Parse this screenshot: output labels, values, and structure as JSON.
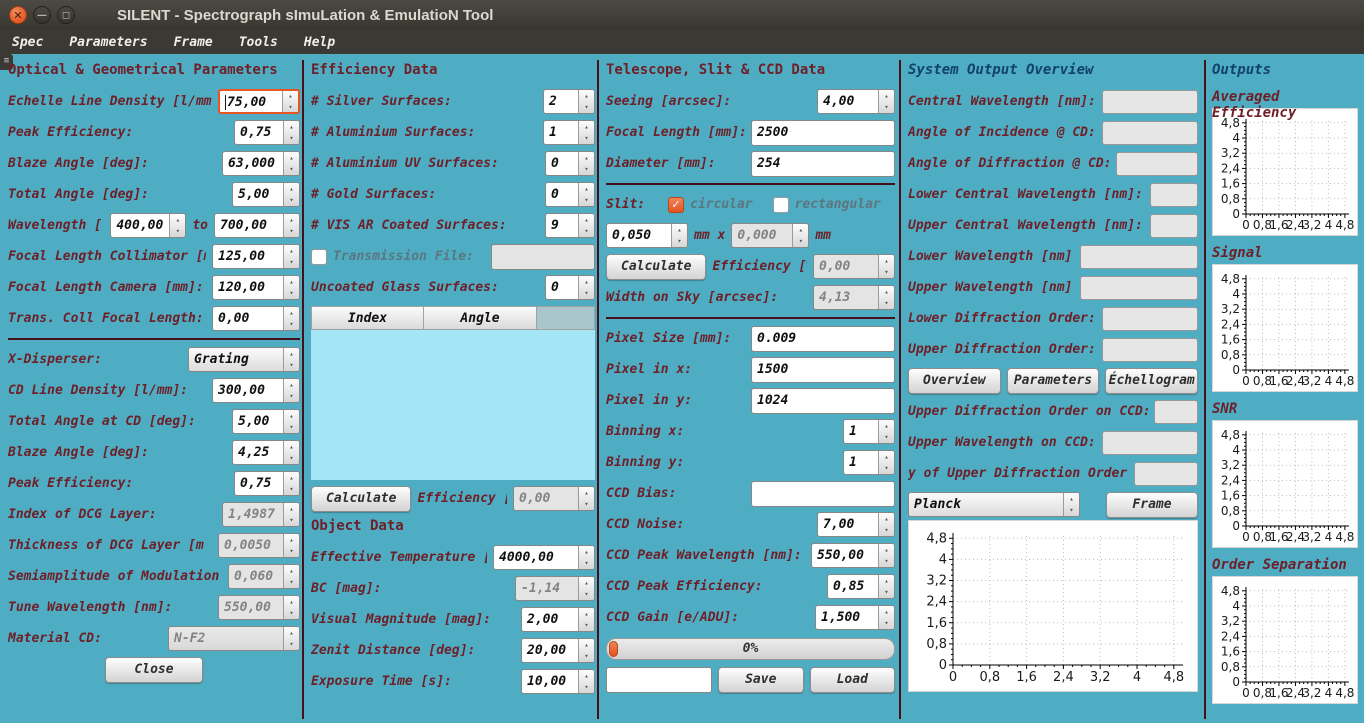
{
  "window": {
    "title": "SILENT - Spectrograph sImuLation & EmulatioN Tool",
    "buttons": [
      {
        "name": "close",
        "glyph": "✕"
      },
      {
        "name": "minimize",
        "glyph": "—"
      },
      {
        "name": "maximize",
        "glyph": "◻"
      }
    ]
  },
  "menu": [
    "Spec",
    "Parameters",
    "Frame",
    "Tools",
    "Help"
  ],
  "icons": {
    "spin_up": "▴",
    "spin_down": "▾",
    "check": "✓",
    "grip": "≡"
  },
  "colors": {
    "background": "#4fadc3",
    "label_maroon": "#6e1f28",
    "header_blue": "#12426a",
    "accent_orange": "#e95420",
    "table_body": "#a5e6f6",
    "titlebar": "#3a3934"
  },
  "columns": [
    {
      "title": "Optical & Geometrical Parameters",
      "rows": [
        {
          "t": "spin",
          "label": "Echelle Line Density [l/mm",
          "value": "75,00",
          "w": 82,
          "state": "focused"
        },
        {
          "t": "spin",
          "label": "Peak Efficiency:",
          "value": "0,75",
          "w": 66
        },
        {
          "t": "spin",
          "label": "Blaze Angle [deg]:",
          "value": "63,000",
          "w": 78
        },
        {
          "t": "spin",
          "label": "Total Angle [deg]:",
          "value": "5,00",
          "w": 68
        },
        {
          "t": "wave",
          "label": "Wavelength [",
          "v1": "400,00",
          "mid": "to",
          "v2": "700,00",
          "w1": 76,
          "w2": 86
        },
        {
          "t": "spin",
          "label": "Focal Length Collimator [m",
          "value": "125,00",
          "w": 88
        },
        {
          "t": "spin",
          "label": "Focal Length Camera [mm]:",
          "value": "120,00",
          "w": 88
        },
        {
          "t": "spin",
          "label": "Trans. Coll Focal Length:",
          "value": "0,00",
          "w": 88
        },
        {
          "t": "divider"
        },
        {
          "t": "combo",
          "label": "X-Disperser:",
          "value": "Grating",
          "w": 112
        },
        {
          "t": "spin",
          "label": "CD Line Density [l/mm]:",
          "value": "300,00",
          "w": 88
        },
        {
          "t": "spin",
          "label": "Total Angle at CD [deg]:",
          "value": "5,00",
          "w": 68
        },
        {
          "t": "spin",
          "label": "Blaze Angle [deg]:",
          "value": "4,25",
          "w": 68
        },
        {
          "t": "spin",
          "label": "Peak Efficiency:",
          "value": "0,75",
          "w": 66
        },
        {
          "t": "spin",
          "label": "Index of DCG Layer:",
          "value": "1,4987",
          "w": 78,
          "state": "disabled"
        },
        {
          "t": "spin",
          "label": "Thickness of DCG Layer [m",
          "value": "0,0050",
          "w": 82,
          "state": "disabled"
        },
        {
          "t": "spin",
          "label": "Semiamplitude of Modulation",
          "value": "0,060",
          "w": 72,
          "state": "disabled"
        },
        {
          "t": "spin",
          "label": "Tune Wavelength [nm]:",
          "value": "550,00",
          "w": 82,
          "state": "disabled"
        },
        {
          "t": "combo",
          "label": "Material CD:",
          "value": "N-F2",
          "w": 132,
          "state": "disabled"
        },
        {
          "t": "btn",
          "label": "Close"
        }
      ]
    },
    {
      "title": "Efficiency Data",
      "rows": [
        {
          "t": "spin",
          "label": "# Silver Surfaces:",
          "value": "2",
          "w": 52
        },
        {
          "t": "spin",
          "label": "# Aluminium Surfaces:",
          "value": "1",
          "w": 52
        },
        {
          "t": "spin",
          "label": "# Aluminium UV Surfaces:",
          "value": "0",
          "w": 50
        },
        {
          "t": "spin",
          "label": "# Gold Surfaces:",
          "value": "0",
          "w": 50
        },
        {
          "t": "spin",
          "label": "# VIS AR Coated Surfaces:",
          "value": "9",
          "w": 50
        },
        {
          "t": "checkfile",
          "label": "Transmission File:",
          "checked": false,
          "value": "",
          "w": 104
        },
        {
          "t": "spin",
          "label": "Uncoated Glass Surfaces:",
          "value": "0",
          "w": 50
        },
        {
          "t": "table",
          "headers": [
            "Index",
            "Angle"
          ],
          "rows": [],
          "h": 150
        },
        {
          "t": "calc",
          "button": "Calculate",
          "label": "Efficiency [%]",
          "value": "0,00",
          "w": 82
        },
        {
          "t": "header",
          "text": "Object Data"
        },
        {
          "t": "spin",
          "label": "Effective Temperature [K",
          "value": "4000,00",
          "w": 102
        },
        {
          "t": "spin",
          "label": "BC [mag]:",
          "value": "-1,14",
          "w": 80,
          "state": "disabled"
        },
        {
          "t": "spin",
          "label": "Visual Magnitude [mag]:",
          "value": "2,00",
          "w": 74
        },
        {
          "t": "spin",
          "label": "Zenit Distance [deg]:",
          "value": "20,00",
          "w": 74
        },
        {
          "t": "spin",
          "label": "Exposure Time [s]:",
          "value": "10,00",
          "w": 74
        }
      ]
    },
    {
      "title": "Telescope, Slit & CCD Data",
      "rows": [
        {
          "t": "spin",
          "label": "Seeing [arcsec]:",
          "value": "4,00",
          "w": 78
        },
        {
          "t": "text",
          "label": "Focal Length [mm]:",
          "value": "2500",
          "w": 144
        },
        {
          "t": "text",
          "label": "Diameter [mm]:",
          "value": "254",
          "w": 144
        },
        {
          "t": "divider"
        },
        {
          "t": "slit",
          "label": "Slit:",
          "checks": [
            {
              "label": "circular",
              "checked": true
            },
            {
              "label": "rectangular",
              "checked": false
            }
          ]
        },
        {
          "t": "slitdims",
          "v1": "0,050",
          "w1": 82,
          "sep1": "mm x",
          "v2": "0,000",
          "w2": 78,
          "sep2": "mm"
        },
        {
          "t": "calc",
          "button": "Calculate",
          "label": "Efficiency [%]",
          "value": "0,00",
          "w": 82
        },
        {
          "t": "spin",
          "label": "Width on Sky [arcsec]:",
          "value": "4,13",
          "w": 82,
          "state": "disabled"
        },
        {
          "t": "divider"
        },
        {
          "t": "text",
          "label": "Pixel Size [mm]:",
          "value": "0.009",
          "w": 144
        },
        {
          "t": "text",
          "label": "Pixel in x:",
          "value": "1500",
          "w": 144
        },
        {
          "t": "text",
          "label": "Pixel in y:",
          "value": "1024",
          "w": 144
        },
        {
          "t": "spin",
          "label": "Binning x:",
          "value": "1",
          "w": 52
        },
        {
          "t": "spin",
          "label": "Binning y:",
          "value": "1",
          "w": 52
        },
        {
          "t": "text",
          "label": "CCD Bias:",
          "value": "",
          "w": 144
        },
        {
          "t": "spin",
          "label": "CCD Noise:",
          "value": "7,00",
          "w": 78
        },
        {
          "t": "spin",
          "label": "CCD Peak Wavelength [nm]:",
          "value": "550,00",
          "w": 84
        },
        {
          "t": "spin",
          "label": "CCD Peak Efficiency:",
          "value": "0,85",
          "w": 68
        },
        {
          "t": "spin",
          "label": "CCD  Gain [e/ADU]:",
          "value": "1,500",
          "w": 80
        },
        {
          "t": "progress",
          "label": "0%",
          "percent": 0
        },
        {
          "t": "filerow",
          "input": "",
          "buttons": [
            "Save",
            "Load"
          ]
        }
      ]
    },
    {
      "title": "System Output Overview",
      "accent": "blue",
      "rows": [
        {
          "t": "out",
          "label": "Central Wavelength [nm]:",
          "w": 96
        },
        {
          "t": "out",
          "label": "Angle of Incidence @ CD:",
          "w": 96
        },
        {
          "t": "out",
          "label": "Angle of Diffraction @ CD:",
          "w": 82
        },
        {
          "t": "out",
          "label": "Lower Central Wavelength [nm]:",
          "w": 48
        },
        {
          "t": "out",
          "label": "Upper Central Wavelength [nm]:",
          "w": 48
        },
        {
          "t": "out",
          "label": "Lower Wavelength [nm]:",
          "w": 118
        },
        {
          "t": "out",
          "label": "Upper Wavelength [nm]:",
          "w": 118
        },
        {
          "t": "out",
          "label": "Lower Diffraction Order:",
          "w": 96
        },
        {
          "t": "out",
          "label": "Upper Diffraction Order:",
          "w": 96
        },
        {
          "t": "btnrow",
          "buttons": [
            "Overview",
            "Parameters",
            "Échellogram"
          ]
        },
        {
          "t": "out",
          "label": "Upper Diffraction Order on CCD:",
          "w": 44
        },
        {
          "t": "out",
          "label": "Upper Wavelength on CCD:",
          "w": 96
        },
        {
          "t": "out",
          "label": "y of Upper Diffraction Order:",
          "w": 64
        },
        {
          "t": "combobtn",
          "combo": "Planck",
          "button": "Frame"
        },
        {
          "t": "chart",
          "idx": 0,
          "h": 172
        }
      ]
    },
    {
      "title": "Outputs",
      "accent": "blue",
      "rows": [
        {
          "t": "charttitle",
          "text": "Averaged Efficiency"
        },
        {
          "t": "chart",
          "idx": 1,
          "h": 128
        },
        {
          "t": "charttitle",
          "text": "Signal"
        },
        {
          "t": "chart",
          "idx": 2,
          "h": 128
        },
        {
          "t": "charttitle",
          "text": "SNR"
        },
        {
          "t": "chart",
          "idx": 3,
          "h": 128
        },
        {
          "t": "charttitle",
          "text": "Order Separation"
        },
        {
          "t": "chart",
          "idx": 4,
          "h": 128
        }
      ]
    }
  ],
  "chart_data": [
    {
      "type": "line",
      "title": "",
      "series": [],
      "xlim": [
        0,
        4.8
      ],
      "ylim": [
        0,
        4.8
      ],
      "grid": true,
      "xticks": [
        0,
        0.8,
        1.6,
        2.4,
        3.2,
        4,
        4.8
      ],
      "yticks": [
        0,
        0.8,
        1.6,
        2.4,
        3.2,
        4,
        4.8
      ],
      "xtick_labels": [
        "0",
        "0,8",
        "1,6",
        "2,4",
        "3,2",
        "4",
        "4,8"
      ],
      "ytick_labels": [
        "0",
        "0,8",
        "1,6",
        "2,4",
        "3,2",
        "4",
        "4,8"
      ]
    },
    {
      "type": "line",
      "title": "Averaged Efficiency",
      "series": [],
      "xlim": [
        0,
        4.8
      ],
      "ylim": [
        0,
        4.8
      ],
      "grid": true,
      "xticks": [
        0,
        0.8,
        1.6,
        2.4,
        3.2,
        4,
        4.8
      ],
      "yticks": [
        0,
        0.8,
        1.6,
        2.4,
        3.2,
        4,
        4.8
      ],
      "xtick_labels": [
        "0",
        "0,8",
        "1,6",
        "2,4",
        "3,2",
        "4",
        "4,8"
      ],
      "ytick_labels": [
        "0",
        "0,8",
        "1,6",
        "2,4",
        "3,2",
        "4",
        "4,8"
      ]
    },
    {
      "type": "line",
      "title": "Signal",
      "series": [],
      "xlim": [
        0,
        4.8
      ],
      "ylim": [
        0,
        4.8
      ],
      "grid": true,
      "xticks": [
        0,
        0.8,
        1.6,
        2.4,
        3.2,
        4,
        4.8
      ],
      "yticks": [
        0,
        0.8,
        1.6,
        2.4,
        3.2,
        4,
        4.8
      ],
      "xtick_labels": [
        "0",
        "0,8",
        "1,6",
        "2,4",
        "3,2",
        "4",
        "4,8"
      ],
      "ytick_labels": [
        "0",
        "0,8",
        "1,6",
        "2,4",
        "3,2",
        "4",
        "4,8"
      ]
    },
    {
      "type": "line",
      "title": "SNR",
      "series": [],
      "xlim": [
        0,
        4.8
      ],
      "ylim": [
        0,
        4.8
      ],
      "grid": true,
      "xticks": [
        0,
        0.8,
        1.6,
        2.4,
        3.2,
        4,
        4.8
      ],
      "yticks": [
        0,
        0.8,
        1.6,
        2.4,
        3.2,
        4,
        4.8
      ],
      "xtick_labels": [
        "0",
        "0,8",
        "1,6",
        "2,4",
        "3,2",
        "4",
        "4,8"
      ],
      "ytick_labels": [
        "0",
        "0,8",
        "1,6",
        "2,4",
        "3,2",
        "4",
        "4,8"
      ]
    },
    {
      "type": "line",
      "title": "Order Separation",
      "series": [],
      "xlim": [
        0,
        4.8
      ],
      "ylim": [
        0,
        4.8
      ],
      "grid": true,
      "xticks": [
        0,
        0.8,
        1.6,
        2.4,
        3.2,
        4,
        4.8
      ],
      "yticks": [
        0,
        0.8,
        1.6,
        2.4,
        3.2,
        4,
        4.8
      ],
      "xtick_labels": [
        "0",
        "0,8",
        "1,6",
        "2,4",
        "3,2",
        "4",
        "4,8"
      ],
      "ytick_labels": [
        "0",
        "0,8",
        "1,6",
        "2,4",
        "3,2",
        "4",
        "4,8"
      ]
    }
  ]
}
